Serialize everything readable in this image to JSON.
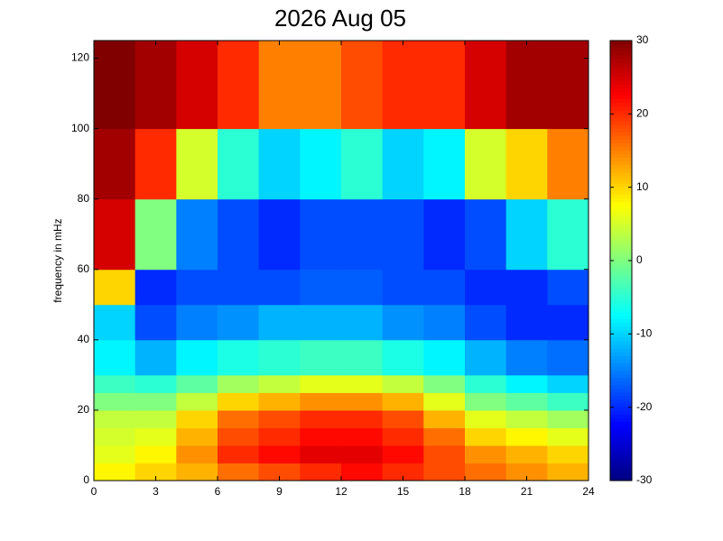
{
  "chart_data": {
    "type": "heatmap",
    "title": "2026 Aug 05",
    "ylabel": "frequency in mHz",
    "colormap": "jet",
    "x": [
      0,
      2,
      4,
      6,
      8,
      10,
      12,
      14,
      16,
      18,
      20,
      22,
      24
    ],
    "y": [
      0,
      5,
      10,
      15,
      20,
      25,
      30,
      40,
      50,
      60,
      80,
      100,
      125
    ],
    "z": [
      [
        8,
        10,
        12,
        16,
        18,
        20,
        22,
        20,
        18,
        16,
        14,
        12
      ],
      [
        6,
        8,
        14,
        20,
        22,
        24,
        24,
        22,
        18,
        14,
        12,
        10
      ],
      [
        5,
        6,
        12,
        18,
        20,
        22,
        22,
        20,
        16,
        10,
        8,
        6
      ],
      [
        4,
        4,
        10,
        16,
        18,
        20,
        20,
        18,
        12,
        6,
        4,
        2
      ],
      [
        0,
        0,
        4,
        10,
        12,
        14,
        14,
        12,
        6,
        0,
        -2,
        -4
      ],
      [
        -4,
        -5,
        -2,
        2,
        4,
        6,
        6,
        4,
        0,
        -5,
        -8,
        -10
      ],
      [
        -8,
        -12,
        -8,
        -6,
        -5,
        -4,
        -4,
        -6,
        -8,
        -12,
        -15,
        -16
      ],
      [
        -10,
        -18,
        -15,
        -14,
        -12,
        -12,
        -12,
        -14,
        -15,
        -18,
        -20,
        -20
      ],
      [
        10,
        -20,
        -18,
        -18,
        -18,
        -17,
        -17,
        -18,
        -18,
        -20,
        -20,
        -18
      ],
      [
        25,
        0,
        -15,
        -18,
        -20,
        -18,
        -18,
        -18,
        -20,
        -18,
        -10,
        -5
      ],
      [
        28,
        20,
        5,
        -5,
        -10,
        -8,
        -5,
        -10,
        -8,
        5,
        10,
        15
      ],
      [
        30,
        28,
        25,
        20,
        15,
        15,
        18,
        20,
        20,
        25,
        28,
        28
      ]
    ],
    "xlim": [
      0,
      24
    ],
    "xticks": [
      0,
      3,
      6,
      9,
      12,
      15,
      18,
      21,
      24
    ],
    "ylim": [
      0,
      125
    ],
    "yticks": [
      0,
      20,
      40,
      60,
      80,
      100,
      120
    ],
    "clim": [
      -30,
      30
    ],
    "cticks": [
      -30,
      -20,
      -10,
      0,
      10,
      20,
      30
    ]
  }
}
